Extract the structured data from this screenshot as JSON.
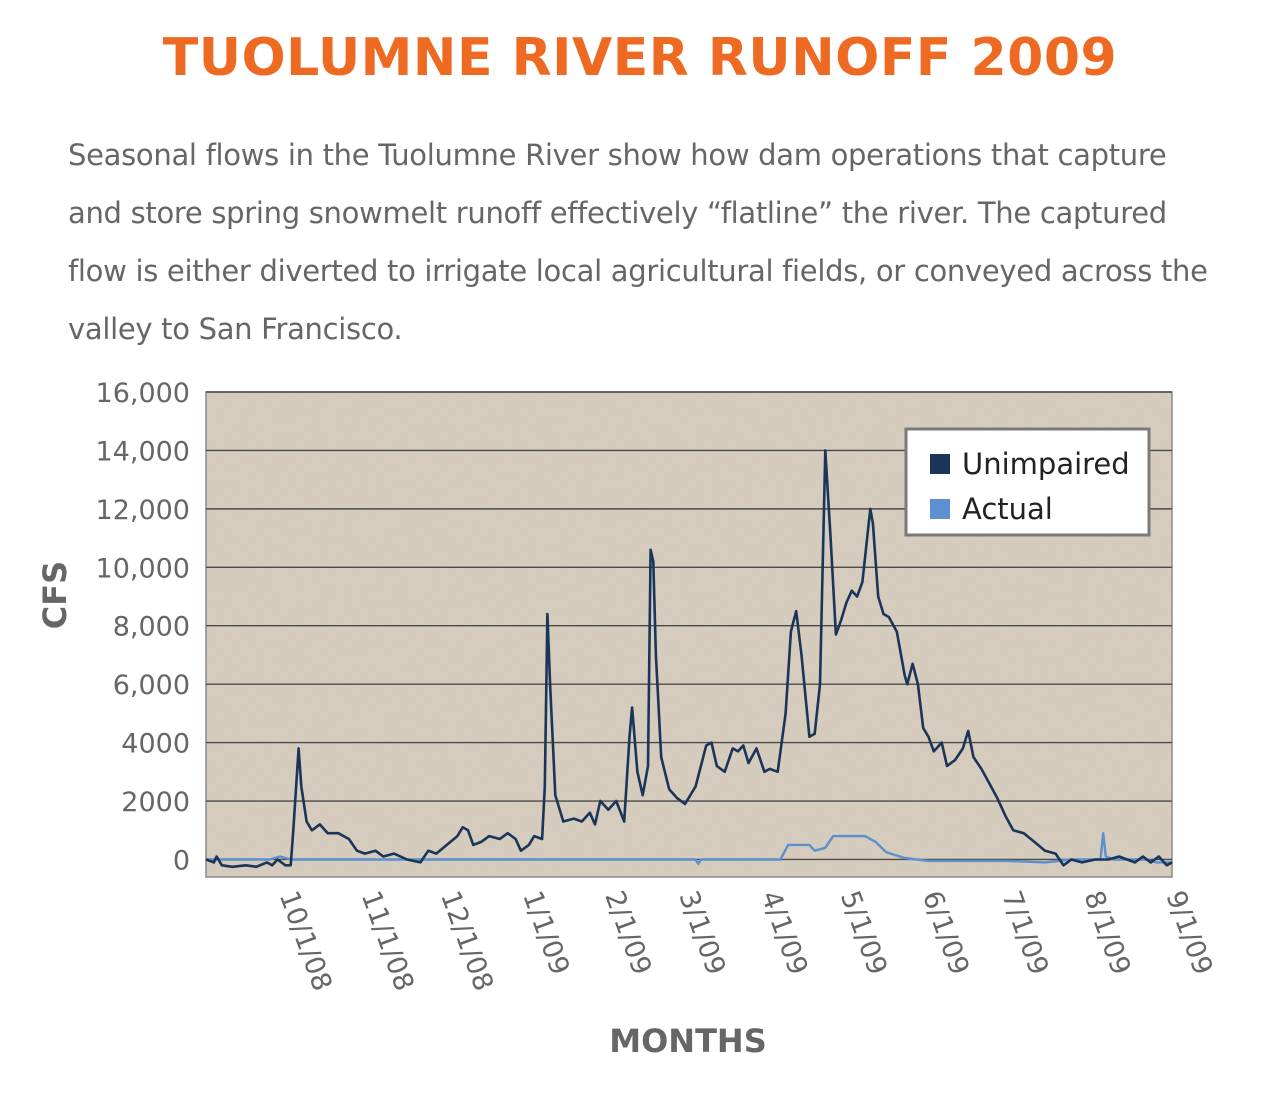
{
  "page": {
    "title": "TUOLUMNE RIVER RUNOFF 2009",
    "description": "Seasonal flows in the Tuolumne River show how dam operations that capture and store spring snowmelt runoff effectively “flatline” the river. The captured flow is either diverted to irrigate local agricultural fields, or conveyed across the valley to San Francisco."
  },
  "colors": {
    "title": "#ee6a22",
    "text": "#666666",
    "plot_background": "#d9d0c1",
    "grid": "#4a4a4a",
    "unimpaired": "#1a3558",
    "actual": "#5b8fcf"
  },
  "chart_data": {
    "type": "line",
    "title": "",
    "xlabel": "MONTHS",
    "ylabel": "CFS",
    "ylim": [
      -600,
      16000
    ],
    "xlim": [
      "2008-09-01",
      "2009-09-01"
    ],
    "grid": true,
    "legend_position": "top-right",
    "yticks": [
      {
        "value": 16000,
        "label": "16,000"
      },
      {
        "value": 14000,
        "label": "14,000"
      },
      {
        "value": 12000,
        "label": "12,000"
      },
      {
        "value": 10000,
        "label": "10,000"
      },
      {
        "value": 8000,
        "label": "8,000"
      },
      {
        "value": 6000,
        "label": "6,000"
      },
      {
        "value": 4000,
        "label": "4000"
      },
      {
        "value": 2000,
        "label": "2000"
      },
      {
        "value": 0,
        "label": "0"
      }
    ],
    "xticks": [
      {
        "value": "2008-10-01",
        "label": "10/1/08"
      },
      {
        "value": "2008-11-01",
        "label": "11/1/08"
      },
      {
        "value": "2008-12-01",
        "label": "12/1/08"
      },
      {
        "value": "2009-01-01",
        "label": "1/1/09"
      },
      {
        "value": "2009-02-01",
        "label": "2/1/09"
      },
      {
        "value": "2009-03-01",
        "label": "3/1/09"
      },
      {
        "value": "2009-04-01",
        "label": "4/1/09"
      },
      {
        "value": "2009-05-01",
        "label": "5/1/09"
      },
      {
        "value": "2009-06-01",
        "label": "6/1/09"
      },
      {
        "value": "2009-07-01",
        "label": "7/1/09"
      },
      {
        "value": "2009-08-01",
        "label": "8/1/09"
      },
      {
        "value": "2009-09-01",
        "label": "9/1/09"
      }
    ],
    "series": [
      {
        "name": "Unimpaired",
        "points": [
          [
            "2008-09-01",
            0
          ],
          [
            "2008-09-04",
            -100
          ],
          [
            "2008-09-05",
            100
          ],
          [
            "2008-09-07",
            -200
          ],
          [
            "2008-09-11",
            -250
          ],
          [
            "2008-09-16",
            -200
          ],
          [
            "2008-09-20",
            -250
          ],
          [
            "2008-09-24",
            -100
          ],
          [
            "2008-09-26",
            -200
          ],
          [
            "2008-09-28",
            0
          ],
          [
            "2008-10-01",
            -200
          ],
          [
            "2008-10-03",
            -200
          ],
          [
            "2008-10-04",
            1000
          ],
          [
            "2008-10-06",
            3800
          ],
          [
            "2008-10-07",
            2500
          ],
          [
            "2008-10-09",
            1300
          ],
          [
            "2008-10-11",
            1000
          ],
          [
            "2008-10-14",
            1200
          ],
          [
            "2008-10-17",
            900
          ],
          [
            "2008-10-21",
            900
          ],
          [
            "2008-10-25",
            700
          ],
          [
            "2008-10-28",
            300
          ],
          [
            "2008-10-31",
            200
          ],
          [
            "2008-11-04",
            300
          ],
          [
            "2008-11-07",
            100
          ],
          [
            "2008-11-11",
            200
          ],
          [
            "2008-11-16",
            0
          ],
          [
            "2008-11-21",
            -100
          ],
          [
            "2008-11-24",
            300
          ],
          [
            "2008-11-27",
            200
          ],
          [
            "2008-12-01",
            500
          ],
          [
            "2008-12-05",
            800
          ],
          [
            "2008-12-07",
            1100
          ],
          [
            "2008-12-09",
            1000
          ],
          [
            "2008-12-11",
            500
          ],
          [
            "2008-12-14",
            600
          ],
          [
            "2008-12-17",
            800
          ],
          [
            "2008-12-21",
            700
          ],
          [
            "2008-12-24",
            900
          ],
          [
            "2008-12-27",
            700
          ],
          [
            "2008-12-29",
            300
          ],
          [
            "2009-01-01",
            500
          ],
          [
            "2009-01-03",
            800
          ],
          [
            "2009-01-06",
            700
          ],
          [
            "2009-01-07",
            2500
          ],
          [
            "2009-01-08",
            8400
          ],
          [
            "2009-01-09",
            6000
          ],
          [
            "2009-01-11",
            2200
          ],
          [
            "2009-01-14",
            1300
          ],
          [
            "2009-01-18",
            1400
          ],
          [
            "2009-01-21",
            1300
          ],
          [
            "2009-01-24",
            1600
          ],
          [
            "2009-01-26",
            1200
          ],
          [
            "2009-01-28",
            2000
          ],
          [
            "2009-01-31",
            1700
          ],
          [
            "2009-02-03",
            2000
          ],
          [
            "2009-02-06",
            1300
          ],
          [
            "2009-02-08",
            4200
          ],
          [
            "2009-02-09",
            5200
          ],
          [
            "2009-02-11",
            3000
          ],
          [
            "2009-02-13",
            2200
          ],
          [
            "2009-02-15",
            3200
          ],
          [
            "2009-02-16",
            10600
          ],
          [
            "2009-02-17",
            10200
          ],
          [
            "2009-02-18",
            7000
          ],
          [
            "2009-02-20",
            3500
          ],
          [
            "2009-02-23",
            2400
          ],
          [
            "2009-02-26",
            2100
          ],
          [
            "2009-03-01",
            1900
          ],
          [
            "2009-03-05",
            2500
          ],
          [
            "2009-03-09",
            3900
          ],
          [
            "2009-03-11",
            4000
          ],
          [
            "2009-03-13",
            3200
          ],
          [
            "2009-03-16",
            3000
          ],
          [
            "2009-03-19",
            3800
          ],
          [
            "2009-03-21",
            3700
          ],
          [
            "2009-03-23",
            3900
          ],
          [
            "2009-03-25",
            3300
          ],
          [
            "2009-03-28",
            3800
          ],
          [
            "2009-03-31",
            3000
          ],
          [
            "2009-04-02",
            3100
          ],
          [
            "2009-04-05",
            3000
          ],
          [
            "2009-04-08",
            5000
          ],
          [
            "2009-04-10",
            7800
          ],
          [
            "2009-04-12",
            8500
          ],
          [
            "2009-04-14",
            7000
          ],
          [
            "2009-04-17",
            4200
          ],
          [
            "2009-04-19",
            4300
          ],
          [
            "2009-04-21",
            6000
          ],
          [
            "2009-04-23",
            14000
          ],
          [
            "2009-04-25",
            11000
          ],
          [
            "2009-04-27",
            7700
          ],
          [
            "2009-04-29",
            8200
          ],
          [
            "2009-05-01",
            8800
          ],
          [
            "2009-05-03",
            9200
          ],
          [
            "2009-05-05",
            9000
          ],
          [
            "2009-05-07",
            9500
          ],
          [
            "2009-05-10",
            12000
          ],
          [
            "2009-05-11",
            11500
          ],
          [
            "2009-05-13",
            9000
          ],
          [
            "2009-05-15",
            8400
          ],
          [
            "2009-05-17",
            8300
          ],
          [
            "2009-05-20",
            7800
          ],
          [
            "2009-05-23",
            6300
          ],
          [
            "2009-05-24",
            6000
          ],
          [
            "2009-05-26",
            6700
          ],
          [
            "2009-05-28",
            6000
          ],
          [
            "2009-05-30",
            4500
          ],
          [
            "2009-06-01",
            4200
          ],
          [
            "2009-06-03",
            3700
          ],
          [
            "2009-06-06",
            4000
          ],
          [
            "2009-06-08",
            3200
          ],
          [
            "2009-06-11",
            3400
          ],
          [
            "2009-06-14",
            3800
          ],
          [
            "2009-06-16",
            4400
          ],
          [
            "2009-06-18",
            3500
          ],
          [
            "2009-06-21",
            3100
          ],
          [
            "2009-06-24",
            2600
          ],
          [
            "2009-06-27",
            2100
          ],
          [
            "2009-06-30",
            1500
          ],
          [
            "2009-07-03",
            1000
          ],
          [
            "2009-07-07",
            900
          ],
          [
            "2009-07-11",
            600
          ],
          [
            "2009-07-15",
            300
          ],
          [
            "2009-07-19",
            200
          ],
          [
            "2009-07-22",
            -200
          ],
          [
            "2009-07-25",
            0
          ],
          [
            "2009-07-29",
            -100
          ],
          [
            "2009-08-03",
            0
          ],
          [
            "2009-08-08",
            0
          ],
          [
            "2009-08-12",
            100
          ],
          [
            "2009-08-15",
            0
          ],
          [
            "2009-08-18",
            -100
          ],
          [
            "2009-08-21",
            100
          ],
          [
            "2009-08-24",
            -100
          ],
          [
            "2009-08-27",
            100
          ],
          [
            "2009-08-30",
            -200
          ],
          [
            "2009-09-01",
            -100
          ]
        ]
      },
      {
        "name": "Actual",
        "points": [
          [
            "2008-09-01",
            0
          ],
          [
            "2008-09-25",
            0
          ],
          [
            "2008-09-29",
            100
          ],
          [
            "2008-10-03",
            0
          ],
          [
            "2009-03-05",
            0
          ],
          [
            "2009-03-06",
            -150
          ],
          [
            "2009-03-07",
            0
          ],
          [
            "2009-04-06",
            0
          ],
          [
            "2009-04-09",
            500
          ],
          [
            "2009-04-17",
            500
          ],
          [
            "2009-04-19",
            300
          ],
          [
            "2009-04-23",
            400
          ],
          [
            "2009-04-26",
            800
          ],
          [
            "2009-05-08",
            800
          ],
          [
            "2009-05-12",
            600
          ],
          [
            "2009-05-16",
            250
          ],
          [
            "2009-05-23",
            50
          ],
          [
            "2009-06-01",
            -50
          ],
          [
            "2009-07-01",
            -50
          ],
          [
            "2009-07-15",
            -100
          ],
          [
            "2009-07-25",
            0
          ],
          [
            "2009-08-05",
            0
          ],
          [
            "2009-08-06",
            900
          ],
          [
            "2009-08-07",
            100
          ],
          [
            "2009-08-10",
            0
          ],
          [
            "2009-08-22",
            0
          ],
          [
            "2009-08-26",
            -100
          ],
          [
            "2009-09-01",
            -100
          ]
        ]
      }
    ]
  }
}
